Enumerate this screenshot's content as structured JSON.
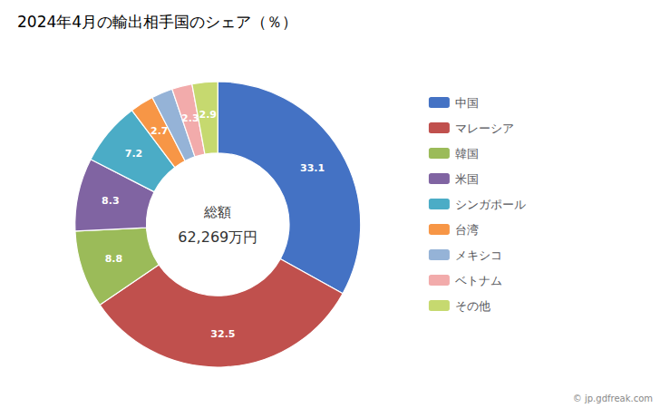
{
  "chart_data": {
    "type": "pie",
    "title": "2024年4月の輸出相手国のシェア（％）",
    "categories": [
      "中国",
      "マレーシア",
      "韓国",
      "米国",
      "シンガポール",
      "台湾",
      "メキシコ",
      "ベトナム",
      "その他"
    ],
    "values": [
      33.1,
      32.5,
      8.8,
      8.3,
      7.2,
      2.7,
      2.4,
      2.3,
      2.9
    ],
    "colors": [
      "#4472C4",
      "#C0504D",
      "#9BBB59",
      "#8064A2",
      "#4BACC6",
      "#F79646",
      "#95B3D7",
      "#F2ABAB",
      "#C6D96F"
    ],
    "data_labels": true,
    "legend": "right",
    "annotations": [
      "総額",
      "62,269万円",
      "© jp.gdfreak.com"
    ]
  }
}
